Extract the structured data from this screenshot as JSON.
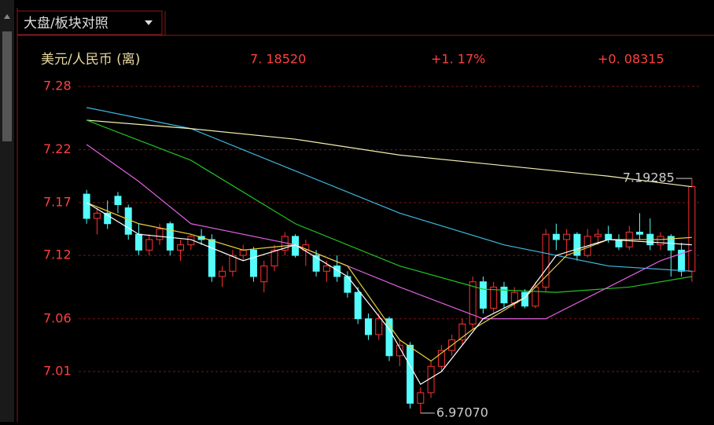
{
  "header": {
    "tab": "大盘/板块对照",
    "symbol": "美元/人民币 (离)",
    "price": "7. 18520",
    "change_pct": "+1. 17%",
    "change": "+0. 08315"
  },
  "chart_data": {
    "type": "candlestick",
    "up_color": "#ff3232",
    "down_color": "#54fcfc",
    "open": [
      7.178,
      7.155,
      7.16,
      7.176,
      7.165,
      7.14,
      7.125,
      7.135,
      7.15,
      7.125,
      7.13,
      7.138,
      7.135,
      7.1,
      7.105,
      7.12,
      7.125,
      7.095,
      7.11,
      7.125,
      7.138,
      7.125,
      7.12,
      7.105,
      7.11,
      7.1,
      7.085,
      7.06,
      7.045,
      7.06,
      7.025,
      7.035,
      6.98,
      6.99,
      7.015,
      7.03,
      7.04,
      7.055,
      7.095,
      7.07,
      7.09,
      7.075,
      7.085,
      7.072,
      7.09,
      7.14,
      7.135,
      7.14,
      7.12,
      7.138,
      7.14,
      7.135,
      7.128,
      7.142,
      7.14,
      7.13,
      7.138,
      7.125,
      7.105
    ],
    "high": [
      7.182,
      7.165,
      7.172,
      7.18,
      7.168,
      7.15,
      7.14,
      7.15,
      7.152,
      7.135,
      7.14,
      7.145,
      7.14,
      7.11,
      7.125,
      7.13,
      7.128,
      7.115,
      7.13,
      7.142,
      7.14,
      7.135,
      7.125,
      7.115,
      7.12,
      7.105,
      7.09,
      7.065,
      7.065,
      7.062,
      7.04,
      7.038,
      6.995,
      7.02,
      7.035,
      7.045,
      7.06,
      7.1,
      7.1,
      7.095,
      7.095,
      7.09,
      7.088,
      7.095,
      7.145,
      7.15,
      7.145,
      7.142,
      7.145,
      7.145,
      7.148,
      7.14,
      7.148,
      7.16,
      7.155,
      7.142,
      7.14,
      7.132,
      7.19285
    ],
    "low": [
      7.15,
      7.14,
      7.145,
      7.16,
      7.135,
      7.12,
      7.12,
      7.13,
      7.12,
      7.115,
      7.125,
      7.13,
      7.095,
      7.09,
      7.1,
      7.115,
      7.095,
      7.085,
      7.105,
      7.12,
      7.118,
      7.11,
      7.1,
      7.095,
      7.095,
      7.08,
      7.055,
      7.04,
      7.04,
      7.02,
      7.015,
      6.975,
      6.9707,
      6.985,
      7.01,
      7.025,
      7.035,
      7.05,
      7.065,
      7.065,
      7.07,
      7.07,
      7.07,
      7.07,
      7.085,
      7.125,
      7.12,
      7.115,
      7.118,
      7.13,
      7.132,
      7.125,
      7.125,
      7.135,
      7.125,
      7.125,
      7.1,
      7.1,
      7.095
    ],
    "close": [
      7.155,
      7.16,
      7.15,
      7.168,
      7.14,
      7.125,
      7.135,
      7.145,
      7.125,
      7.13,
      7.138,
      7.135,
      7.1,
      7.105,
      7.12,
      7.125,
      7.1,
      7.11,
      7.125,
      7.138,
      7.12,
      7.13,
      7.105,
      7.11,
      7.1,
      7.085,
      7.06,
      7.045,
      7.06,
      7.025,
      7.035,
      6.98,
      6.99,
      7.015,
      7.03,
      7.04,
      7.055,
      7.095,
      7.07,
      7.09,
      7.075,
      7.085,
      7.072,
      7.09,
      7.14,
      7.135,
      7.14,
      7.12,
      7.138,
      7.14,
      7.135,
      7.128,
      7.142,
      7.14,
      7.13,
      7.138,
      7.125,
      7.105,
      7.1852
    ],
    "series": [
      {
        "color": "#3fb8e0",
        "x": [
          0,
          10,
          20,
          30,
          40,
          45,
          50,
          58
        ],
        "values": [
          7.26,
          7.24,
          7.2,
          7.16,
          7.13,
          7.12,
          7.11,
          7.105
        ]
      },
      {
        "color": "#f4f0b0",
        "x": [
          0,
          10,
          20,
          30,
          40,
          50,
          58
        ],
        "values": [
          7.248,
          7.24,
          7.23,
          7.215,
          7.205,
          7.195,
          7.185
        ]
      },
      {
        "color": "#22c422",
        "x": [
          0,
          10,
          20,
          30,
          38,
          45,
          52,
          58
        ],
        "values": [
          7.248,
          7.21,
          7.15,
          7.11,
          7.088,
          7.085,
          7.09,
          7.1
        ]
      },
      {
        "color": "#e060e0",
        "x": [
          0,
          5,
          10,
          20,
          30,
          38,
          44,
          50,
          55,
          58
        ],
        "values": [
          7.225,
          7.19,
          7.15,
          7.13,
          7.09,
          7.06,
          7.06,
          7.09,
          7.115,
          7.125
        ]
      },
      {
        "color": "#e8d040",
        "x": [
          0,
          5,
          10,
          15,
          20,
          25,
          30,
          33,
          37,
          42,
          46,
          50,
          55,
          58
        ],
        "values": [
          7.17,
          7.15,
          7.14,
          7.125,
          7.13,
          7.11,
          7.04,
          7.02,
          7.05,
          7.08,
          7.12,
          7.135,
          7.135,
          7.137
        ]
      },
      {
        "color": "#ffffff",
        "x": [
          0,
          5,
          10,
          15,
          20,
          25,
          29,
          32,
          34,
          38,
          42,
          45,
          50,
          55,
          58
        ],
        "values": [
          7.17,
          7.14,
          7.135,
          7.115,
          7.13,
          7.1,
          7.05,
          6.998,
          7.01,
          7.06,
          7.08,
          7.12,
          7.135,
          7.132,
          7.13
        ]
      }
    ],
    "annotations": [
      {
        "x": 58,
        "value": 7.19285,
        "label": "7.19285"
      },
      {
        "x": 32,
        "value": 6.9707,
        "label": "6.97070"
      }
    ],
    "xlim": [
      -0.5,
      58.5
    ],
    "ylim": [
      6.9624,
      7.2889
    ],
    "yticks": [
      7.28,
      7.22,
      7.17,
      7.12,
      7.06,
      7.01
    ],
    "grid": true
  }
}
